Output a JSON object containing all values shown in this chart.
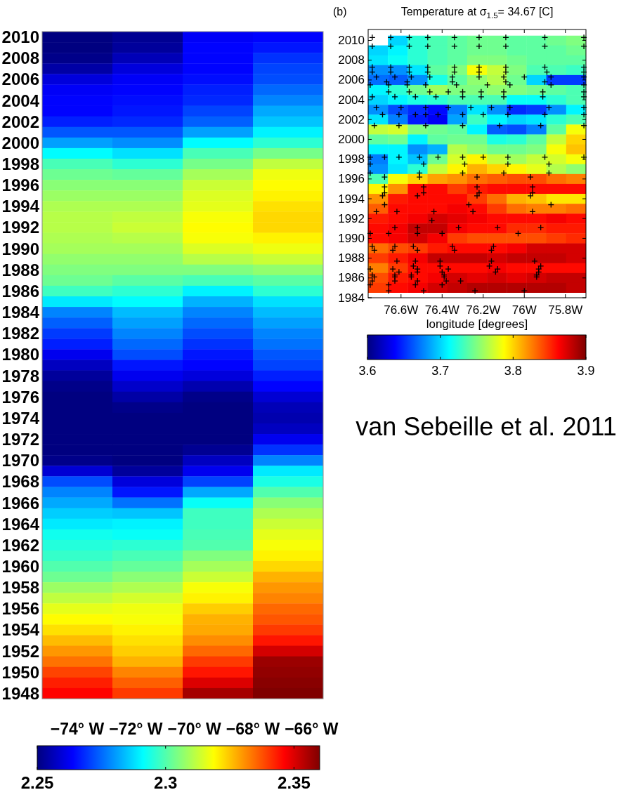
{
  "chart_data": [
    {
      "type": "heatmap",
      "x": [
        -74.0,
        -71.6,
        -69.2,
        -66.8
      ],
      "xlim": [
        -75.2,
        -65.6
      ],
      "xticks": [
        {
          "value": -74,
          "label": "−74° W"
        },
        {
          "value": -72,
          "label": "−72° W"
        },
        {
          "value": -70,
          "label": "−70° W"
        },
        {
          "value": -68,
          "label": "−68° W"
        },
        {
          "value": -66,
          "label": "−66° W"
        }
      ],
      "y_categories": [
        "2010",
        null,
        "2008",
        null,
        "2006",
        null,
        "2004",
        null,
        "2002",
        null,
        "2000",
        null,
        "1998",
        null,
        "1996",
        null,
        "1994",
        null,
        "1992",
        null,
        "1990",
        null,
        "1988",
        null,
        "1986",
        null,
        "1984",
        null,
        "1982",
        null,
        "1980",
        null,
        "1978",
        null,
        "1976",
        null,
        "1974",
        null,
        "1972",
        null,
        "1970",
        null,
        "1968",
        null,
        "1966",
        null,
        "1964",
        null,
        "1962",
        null,
        "1960",
        null,
        "1958",
        null,
        "1956",
        null,
        "1954",
        null,
        "1952",
        null,
        "1950",
        null,
        "1948"
      ],
      "cells": [
        [
          2.25,
          2.252,
          2.263,
          2.264
        ],
        [
          2.25,
          2.253,
          2.264,
          2.266
        ],
        [
          2.251,
          2.256,
          2.264,
          2.269
        ],
        [
          2.254,
          2.26,
          2.264,
          2.271
        ],
        [
          2.26,
          2.263,
          2.265,
          2.272
        ],
        [
          2.263,
          2.264,
          2.267,
          2.275
        ],
        [
          2.264,
          2.265,
          2.268,
          2.278
        ],
        [
          2.264,
          2.266,
          2.271,
          2.282
        ],
        [
          2.267,
          2.268,
          2.274,
          2.285
        ],
        [
          2.273,
          2.273,
          2.281,
          2.29
        ],
        [
          2.281,
          2.279,
          2.291,
          2.296
        ],
        [
          2.291,
          2.288,
          2.299,
          2.304
        ],
        [
          2.299,
          2.296,
          2.304,
          2.312
        ],
        [
          2.303,
          2.302,
          2.309,
          2.317
        ],
        [
          2.306,
          2.306,
          2.313,
          2.319
        ],
        [
          2.308,
          2.308,
          2.315,
          2.32
        ],
        [
          2.31,
          2.31,
          2.316,
          2.322
        ],
        [
          2.311,
          2.312,
          2.318,
          2.323
        ],
        [
          2.311,
          2.313,
          2.319,
          2.323
        ],
        [
          2.31,
          2.311,
          2.318,
          2.32
        ],
        [
          2.309,
          2.309,
          2.315,
          2.317
        ],
        [
          2.307,
          2.307,
          2.311,
          2.313
        ],
        [
          2.305,
          2.305,
          2.305,
          2.307
        ],
        [
          2.303,
          2.301,
          2.299,
          2.301
        ],
        [
          2.298,
          2.296,
          2.29,
          2.296
        ],
        [
          2.289,
          2.291,
          2.283,
          2.288
        ],
        [
          2.278,
          2.284,
          2.278,
          2.284
        ],
        [
          2.274,
          2.281,
          2.275,
          2.281
        ],
        [
          2.27,
          2.278,
          2.272,
          2.278
        ],
        [
          2.267,
          2.275,
          2.269,
          2.276
        ],
        [
          2.262,
          2.272,
          2.266,
          2.273
        ],
        [
          2.257,
          2.266,
          2.264,
          2.271
        ],
        [
          2.253,
          2.262,
          2.26,
          2.267
        ],
        [
          2.251,
          2.258,
          2.255,
          2.264
        ],
        [
          2.25,
          2.254,
          2.251,
          2.259
        ],
        [
          2.25,
          2.251,
          2.25,
          2.256
        ],
        [
          2.25,
          2.25,
          2.25,
          2.255
        ],
        [
          2.25,
          2.25,
          2.25,
          2.257
        ],
        [
          2.25,
          2.25,
          2.25,
          2.262
        ],
        [
          2.25,
          2.25,
          2.252,
          2.269
        ],
        [
          2.251,
          2.25,
          2.257,
          2.278
        ],
        [
          2.259,
          2.253,
          2.262,
          2.289
        ],
        [
          2.272,
          2.26,
          2.271,
          2.294
        ],
        [
          2.278,
          2.266,
          2.282,
          2.3
        ],
        [
          2.282,
          2.276,
          2.292,
          2.306
        ],
        [
          2.286,
          2.285,
          2.298,
          2.31
        ],
        [
          2.289,
          2.29,
          2.298,
          2.313
        ],
        [
          2.293,
          2.292,
          2.299,
          2.316
        ],
        [
          2.295,
          2.296,
          2.3,
          2.318
        ],
        [
          2.297,
          2.299,
          2.305,
          2.32
        ],
        [
          2.3,
          2.302,
          2.309,
          2.323
        ],
        [
          2.303,
          2.306,
          2.313,
          2.327
        ],
        [
          2.308,
          2.31,
          2.318,
          2.33
        ],
        [
          2.312,
          2.314,
          2.32,
          2.332
        ],
        [
          2.316,
          2.317,
          2.324,
          2.335
        ],
        [
          2.319,
          2.318,
          2.327,
          2.337
        ],
        [
          2.322,
          2.32,
          2.328,
          2.34
        ],
        [
          2.326,
          2.322,
          2.331,
          2.344
        ],
        [
          2.33,
          2.324,
          2.335,
          2.351
        ],
        [
          2.334,
          2.327,
          2.34,
          2.357
        ],
        [
          2.339,
          2.332,
          2.344,
          2.358
        ],
        [
          2.343,
          2.336,
          2.35,
          2.359
        ],
        [
          2.346,
          2.34,
          2.356,
          2.36
        ]
      ],
      "clim": [
        2.25,
        2.36
      ],
      "cticks": [
        2.25,
        2.3,
        2.35
      ]
    },
    {
      "type": "scatter",
      "title": "Temperature at σ$_{1.5}$= 34.67 [C]",
      "xlabel": "longitude [degrees]",
      "annotations": [
        "(b)",
        "van Sebeille et al. 2011"
      ],
      "xlim": [
        -76.76,
        -75.7
      ],
      "xticks": [
        {
          "value": -76.6,
          "label": "76.6W"
        },
        {
          "value": -76.4,
          "label": "76.4W"
        },
        {
          "value": -76.2,
          "label": "76.2W"
        },
        {
          "value": -76,
          "label": "76W"
        },
        {
          "value": -75.8,
          "label": "75.8W"
        }
      ],
      "ylim": [
        1984,
        2011.1
      ],
      "yticks": [
        1984,
        1986,
        1988,
        1990,
        1992,
        1994,
        1996,
        1998,
        2000,
        2002,
        2004,
        2006,
        2008,
        2010
      ],
      "color": "#000000",
      "marker": "cross",
      "x": [
        -76.74,
        -76.65,
        -76.56,
        -76.47,
        -76.34,
        -76.22,
        -76.09,
        -75.9,
        -75.71,
        -76.74,
        -76.65,
        -76.56,
        -76.47,
        -76.34,
        -76.22,
        -76.09,
        -75.9,
        -75.71,
        -76.74,
        -76.65,
        -76.56,
        -76.47,
        -76.34,
        -76.22,
        -76.09,
        -75.9,
        -75.71,
        -76.74,
        -76.65,
        -76.56,
        -76.47,
        -76.34,
        -76.22,
        -76.09,
        -75.89,
        -75.71,
        -76.72,
        -76.63,
        -76.55,
        -76.46,
        -76.35,
        -76.22,
        -76.1,
        -76.0,
        -75.87,
        -75.71,
        -76.67,
        -76.57,
        -76.35,
        -76.09,
        -75.9,
        -76.75,
        -76.66,
        -76.57,
        -76.48,
        -76.33,
        -76.18,
        -76.07,
        -75.87,
        -75.71,
        -76.66,
        -76.56,
        -76.46,
        -76.37,
        -76.3,
        -76.21,
        -76.1,
        -75.91,
        -75.71,
        -76.74,
        -76.63,
        -76.53,
        -76.43,
        -76.3,
        -76.21,
        -76.1,
        -75.91,
        -75.71,
        -76.72,
        -76.6,
        -76.48,
        -76.37,
        -76.26,
        -76.16,
        -76.07,
        -75.88,
        -75.71,
        -76.69,
        -76.61,
        -76.53,
        -76.48,
        -76.42,
        -76.3,
        -76.2,
        -76.08,
        -75.9,
        -75.71,
        -76.73,
        -76.61,
        -76.48,
        -76.3,
        -76.12,
        -75.92,
        -75.71,
        -76.75,
        -76.68,
        -76.61,
        -76.51,
        -76.42,
        -76.3,
        -76.2,
        -76.08,
        -75.9,
        -75.71,
        -76.75,
        -76.49,
        -76.29,
        -76.08,
        -75.88,
        -76.75,
        -76.51,
        -76.3,
        -76.1,
        -75.88,
        -76.68,
        -76.51,
        -76.23,
        -75.97,
        -76.68,
        -76.49,
        -76.23,
        -75.96,
        -76.68,
        -76.49,
        -76.22,
        -75.96,
        -76.69,
        -76.52,
        -76.23,
        -75.97,
        -76.68,
        -76.27,
        -75.87,
        -76.72,
        -76.62,
        -76.44,
        -76.25,
        -75.96,
        -76.45,
        -76.63,
        -76.52,
        -76.32,
        -76.13,
        -75.92,
        -76.75,
        -76.66,
        -76.52,
        -76.4,
        -76.03,
        -76.74,
        -76.63,
        -76.54,
        -76.35,
        -76.15,
        -76.73,
        -76.64,
        -76.52,
        -76.34,
        -76.16,
        -76.62,
        -76.53,
        -76.41,
        -76.16,
        -75.95,
        -76.54,
        -76.41,
        -76.17,
        -75.92,
        -76.75,
        -76.64,
        -76.52,
        -76.37,
        -76.13,
        -75.93,
        -76.61,
        -76.52,
        -76.4,
        -76.14,
        -75.93,
        -76.74,
        -76.63,
        -76.55,
        -76.39,
        -75.94,
        -76.73,
        -76.63,
        -76.55,
        -76.39,
        -75.94,
        -76.74,
        -76.63,
        -76.52,
        -76.38,
        -76.31,
        -76.75,
        -76.66,
        -76.53,
        -76.4,
        -76.66,
        -76.49,
        -76.24,
        -76.0
      ],
      "values": [
        2010.3,
        2010.3,
        2010.3,
        2010.3,
        2010.3,
        2010.3,
        2010.3,
        2010.3,
        2010.3,
        2009.4,
        2009.4,
        2009.4,
        2009.4,
        2009.4,
        2009.4,
        2009.4,
        2009.4,
        2009.4,
        2007.3,
        2007.3,
        2007.3,
        2007.3,
        2007.3,
        2007.3,
        2007.3,
        2007.3,
        2007.3,
        2006.8,
        2006.8,
        2006.8,
        2006.8,
        2006.8,
        2006.8,
        2006.8,
        2006.8,
        2006.8,
        2006.3,
        2006.3,
        2006.3,
        2006.3,
        2006.3,
        2006.3,
        2006.3,
        2006.3,
        2006.3,
        2006.3,
        2005.8,
        2005.8,
        2005.8,
        2005.8,
        2005.8,
        2005.5,
        2005.5,
        2005.5,
        2005.5,
        2005.5,
        2005.5,
        2005.5,
        2005.5,
        2005.5,
        2004.8,
        2004.8,
        2004.8,
        2004.8,
        2004.8,
        2004.8,
        2004.8,
        2004.8,
        2004.8,
        2004.3,
        2004.3,
        2004.3,
        2004.3,
        2004.3,
        2004.3,
        2004.3,
        2004.3,
        2004.3,
        2003.2,
        2003.2,
        2003.2,
        2003.2,
        2003.2,
        2003.2,
        2003.2,
        2003.2,
        2003.2,
        2002.5,
        2002.5,
        2002.5,
        2002.5,
        2002.5,
        2002.5,
        2002.5,
        2002.5,
        2002.5,
        2002.5,
        2001.4,
        2001.4,
        2001.4,
        2001.4,
        2001.4,
        2001.4,
        2001.4,
        1998.2,
        1998.2,
        1998.2,
        1998.2,
        1998.2,
        1998.2,
        1998.2,
        1998.2,
        1998.2,
        1998.2,
        1997.5,
        1997.5,
        1997.5,
        1997.5,
        1997.5,
        1996.6,
        1996.6,
        1996.6,
        1996.6,
        1996.6,
        1996.2,
        1996.2,
        1996.2,
        1996.2,
        1995.2,
        1995.2,
        1995.2,
        1995.2,
        1994.6,
        1994.6,
        1994.6,
        1994.6,
        1994.3,
        1994.3,
        1994.3,
        1994.3,
        1993.4,
        1993.4,
        1993.4,
        1992.7,
        1992.7,
        1992.7,
        1992.7,
        1992.7,
        1991.8,
        1991.1,
        1991.1,
        1991.1,
        1991.1,
        1991.1,
        1990.5,
        1990.5,
        1990.5,
        1990.5,
        1990.5,
        1989.2,
        1989.2,
        1989.2,
        1989.2,
        1989.2,
        1988.8,
        1988.8,
        1988.8,
        1988.8,
        1988.8,
        1987.7,
        1987.7,
        1987.7,
        1987.7,
        1987.7,
        1987.2,
        1987.2,
        1987.2,
        1987.2,
        1986.9,
        1986.9,
        1986.9,
        1986.9,
        1986.9,
        1986.9,
        1986.6,
        1986.6,
        1986.6,
        1986.6,
        1986.6,
        1986.3,
        1986.3,
        1986.3,
        1986.3,
        1986.3,
        1986.1,
        1986.1,
        1986.1,
        1986.1,
        1986.1,
        1985.7,
        1985.7,
        1985.7,
        1985.7,
        1985.7,
        1985.3,
        1985.3,
        1985.3,
        1985.3,
        1984.7,
        1984.7,
        1984.7,
        1984.7
      ]
    },
    {
      "type": "heatmap",
      "categories": [
        null,
        null,
        null,
        null,
        null,
        null,
        null,
        null,
        null,
        null,
        null
      ],
      "y_categories": [
        null,
        null,
        null,
        null,
        null,
        null,
        null,
        null,
        null,
        null,
        null,
        null,
        null,
        null,
        null,
        null,
        null,
        null,
        null,
        null,
        null,
        null,
        null,
        null,
        null,
        null
      ],
      "cells": [
        [
          null,
          3.7,
          3.725,
          3.735,
          3.74,
          3.745,
          3.745,
          3.74,
          3.74,
          3.745,
          3.75
        ],
        [
          3.7,
          3.71,
          3.725,
          3.735,
          3.74,
          3.745,
          3.745,
          3.74,
          3.74,
          3.74,
          3.745
        ],
        [
          3.705,
          3.715,
          3.725,
          3.735,
          3.74,
          3.75,
          3.75,
          3.745,
          3.74,
          3.74,
          3.74
        ],
        [
          3.68,
          3.68,
          3.705,
          3.74,
          3.75,
          3.785,
          3.77,
          3.75,
          3.735,
          3.735,
          3.73
        ],
        [
          3.67,
          3.665,
          3.68,
          3.72,
          3.74,
          3.755,
          3.765,
          3.745,
          3.7,
          3.655,
          3.655
        ],
        [
          3.71,
          3.725,
          3.745,
          3.76,
          3.75,
          3.75,
          3.755,
          3.75,
          3.745,
          3.74,
          3.735
        ],
        [
          3.7,
          3.71,
          3.72,
          3.725,
          3.735,
          3.735,
          3.735,
          3.715,
          3.715,
          3.725,
          3.735
        ],
        [
          3.68,
          3.66,
          3.65,
          3.64,
          3.675,
          3.705,
          3.68,
          3.65,
          3.655,
          3.68,
          3.71
        ],
        [
          3.705,
          3.675,
          3.645,
          3.635,
          3.685,
          3.73,
          3.71,
          3.7,
          3.705,
          3.725,
          3.735
        ],
        [
          3.77,
          3.775,
          3.75,
          3.745,
          3.74,
          3.71,
          3.665,
          3.66,
          3.675,
          3.74,
          3.785
        ],
        [
          3.74,
          3.745,
          3.71,
          3.74,
          3.745,
          3.745,
          3.72,
          3.725,
          3.74,
          3.77,
          3.8
        ],
        [
          3.71,
          3.71,
          3.68,
          3.69,
          3.765,
          3.755,
          3.745,
          3.745,
          3.75,
          3.785,
          3.805
        ],
        [
          3.675,
          3.71,
          3.695,
          3.745,
          3.775,
          3.79,
          3.77,
          3.76,
          3.77,
          3.775,
          3.785
        ],
        [
          3.68,
          3.705,
          3.725,
          3.77,
          3.79,
          3.81,
          3.8,
          3.79,
          3.78,
          3.765,
          3.755
        ],
        [
          3.735,
          3.785,
          3.8,
          3.815,
          3.82,
          3.83,
          3.835,
          3.84,
          3.84,
          3.83,
          3.825
        ],
        [
          3.79,
          3.82,
          3.86,
          3.86,
          3.845,
          3.855,
          3.86,
          3.86,
          3.86,
          3.86,
          3.86
        ],
        [
          3.82,
          3.855,
          3.86,
          3.86,
          3.86,
          3.845,
          3.83,
          3.81,
          3.805,
          3.795,
          3.795
        ],
        [
          3.835,
          3.86,
          3.86,
          3.86,
          3.865,
          3.86,
          3.845,
          3.83,
          3.825,
          3.825,
          3.83
        ],
        [
          3.855,
          3.86,
          3.865,
          3.875,
          3.87,
          3.865,
          3.86,
          3.86,
          3.86,
          3.865,
          3.86
        ],
        [
          3.86,
          3.865,
          3.88,
          3.88,
          3.865,
          3.86,
          3.86,
          3.85,
          3.85,
          3.855,
          3.855
        ],
        [
          3.86,
          3.865,
          3.875,
          3.865,
          3.845,
          3.84,
          3.84,
          3.84,
          3.84,
          3.845,
          3.85
        ],
        [
          3.83,
          3.84,
          3.845,
          3.855,
          3.86,
          3.86,
          3.86,
          3.865,
          3.875,
          3.875,
          3.875
        ],
        [
          3.845,
          3.855,
          3.865,
          3.88,
          3.88,
          3.88,
          3.875,
          3.88,
          3.88,
          3.88,
          3.875
        ],
        [
          3.825,
          3.845,
          3.86,
          3.86,
          3.86,
          3.86,
          3.865,
          3.86,
          3.86,
          3.86,
          3.86
        ],
        [
          3.84,
          3.855,
          3.86,
          3.865,
          3.875,
          3.87,
          3.875,
          3.87,
          3.875,
          3.88,
          3.88
        ],
        [
          3.845,
          3.86,
          3.865,
          3.875,
          3.88,
          3.885,
          3.885,
          3.885,
          3.885,
          3.885,
          3.88
        ]
      ],
      "clim": [
        3.6,
        3.9
      ],
      "cticks": [
        3.6,
        3.7,
        3.8,
        3.9
      ]
    }
  ]
}
